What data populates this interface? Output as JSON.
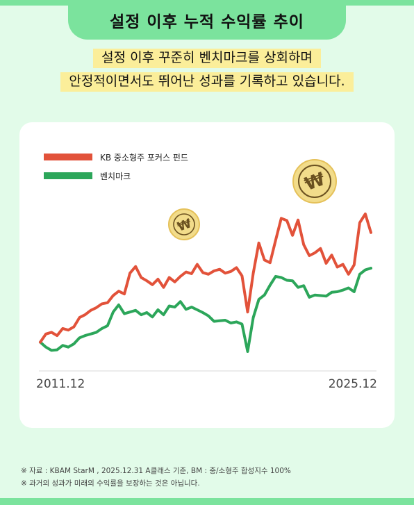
{
  "title": "설정 이후 누적 수익률 추이",
  "subtitle": [
    "설정 이후 꾸준히 벤치마크를 상회하며",
    "안정적이면서도 뛰어난 성과를 기록하고 있습니다."
  ],
  "colors": {
    "fund": "#e2523a",
    "benchmark": "#2ca65a",
    "background": "#e2fbe9",
    "accent": "#7be39d",
    "highlight": "#fbee9a",
    "coin": "#f2dc8a"
  },
  "icons": [
    "won-coin-icon",
    "won-coin-icon"
  ],
  "chart_data": {
    "type": "line",
    "title": "",
    "xlabel": "",
    "ylabel": "",
    "x_ticks": [
      "2011.12",
      "2025.12"
    ],
    "legend": "top-left",
    "grid": false,
    "series": [
      {
        "name": "KB 중소형주 포커스 펀드",
        "values": [
          0,
          1.5,
          1.8,
          1.2,
          2.5,
          2.2,
          2.8,
          4.5,
          5.0,
          5.8,
          6.3,
          7.0,
          7.2,
          8.5,
          9.3,
          8.8,
          12.6,
          13.8,
          11.8,
          11.2,
          10.5,
          11.5,
          10.0,
          11.8,
          11.0,
          12.0,
          12.8,
          12.5,
          14.2,
          12.7,
          12.4,
          13.0,
          13.3,
          12.6,
          12.9,
          13.6,
          12.1,
          5.5,
          12.6,
          18.1,
          15.0,
          14.5,
          18.6,
          22.6,
          22.2,
          19.5,
          22.3,
          17.8,
          15.8,
          16.3,
          17.1,
          14.4,
          15.9,
          13.7,
          14.2,
          12.4,
          14.1,
          21.8,
          23.4,
          20.0
        ]
      },
      {
        "name": "벤치마크",
        "values": [
          0,
          -0.9,
          -1.5,
          -1.4,
          -0.6,
          -0.9,
          -0.3,
          0.8,
          1.2,
          1.5,
          1.8,
          2.5,
          3.0,
          5.5,
          6.8,
          5.2,
          5.5,
          5.8,
          5.0,
          5.4,
          4.6,
          5.9,
          5.0,
          6.6,
          6.4,
          7.4,
          6.0,
          6.4,
          5.9,
          5.4,
          4.8,
          3.8,
          3.9,
          4.0,
          3.5,
          3.7,
          3.3,
          -1.7,
          4.5,
          7.8,
          8.6,
          10.4,
          12.0,
          11.8,
          11.3,
          11.2,
          10.0,
          10.3,
          8.2,
          8.6,
          8.5,
          8.4,
          9.1,
          9.2,
          9.5,
          9.9,
          9.2,
          12.4,
          13.2,
          13.5
        ]
      }
    ]
  },
  "footnotes": [
    "※ 자료 : KBAM StarM , 2025.12.31 A클래스 기준,  BM : 중/소형주 합성지수 100%",
    "※ 과거의 성과가 미래의 수익률을 보장하는 것은 아닙니다."
  ]
}
